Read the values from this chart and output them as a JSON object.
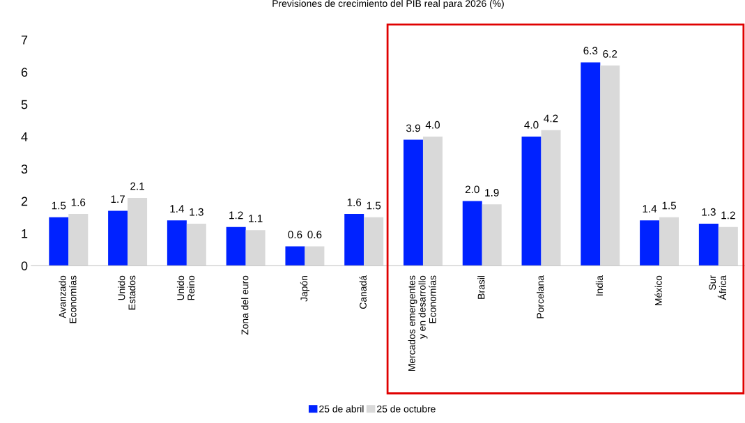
{
  "chart_data": {
    "type": "bar",
    "title": "Previsiones de crecimiento del PIB real para 2026 (%)",
    "categories": [
      "Avanzado\nEconomías",
      "Unido\nEstados",
      "Unido\nReino",
      "Zona del euro",
      "Japón",
      "Canadá",
      "Mercados emergentes\ny en desarrollo\nEconomías",
      "Brasil",
      "Porcelana",
      "India",
      "México",
      "Sur\nÁfrica"
    ],
    "series": [
      {
        "name": "25 de abril",
        "color": "#0022ff",
        "values": [
          1.5,
          1.7,
          1.4,
          1.2,
          0.6,
          1.6,
          3.9,
          2.0,
          4.0,
          6.3,
          1.4,
          1.3
        ],
        "value_labels": [
          "1.5",
          "1.7",
          "1.4",
          "1.2",
          "0.6",
          "1.6",
          "3.9",
          "2.0",
          "4.0",
          "6.3",
          "1.4",
          "1.3"
        ]
      },
      {
        "name": "25 de octubre",
        "color": "#d9d9d9",
        "values": [
          1.6,
          2.1,
          1.3,
          1.1,
          0.6,
          1.5,
          4.0,
          1.9,
          4.2,
          6.2,
          1.5,
          1.2
        ],
        "value_labels": [
          "1.6",
          "2.1",
          "1.3",
          "1.1",
          "0.6",
          "1.5",
          "4.0",
          "1.9",
          "4.2",
          "6.2",
          "1.5",
          "1.2"
        ]
      }
    ],
    "ylim": [
      0,
      7
    ],
    "yticks": [
      0,
      1,
      2,
      3,
      4,
      5,
      6,
      7
    ],
    "legend": "bottom"
  }
}
